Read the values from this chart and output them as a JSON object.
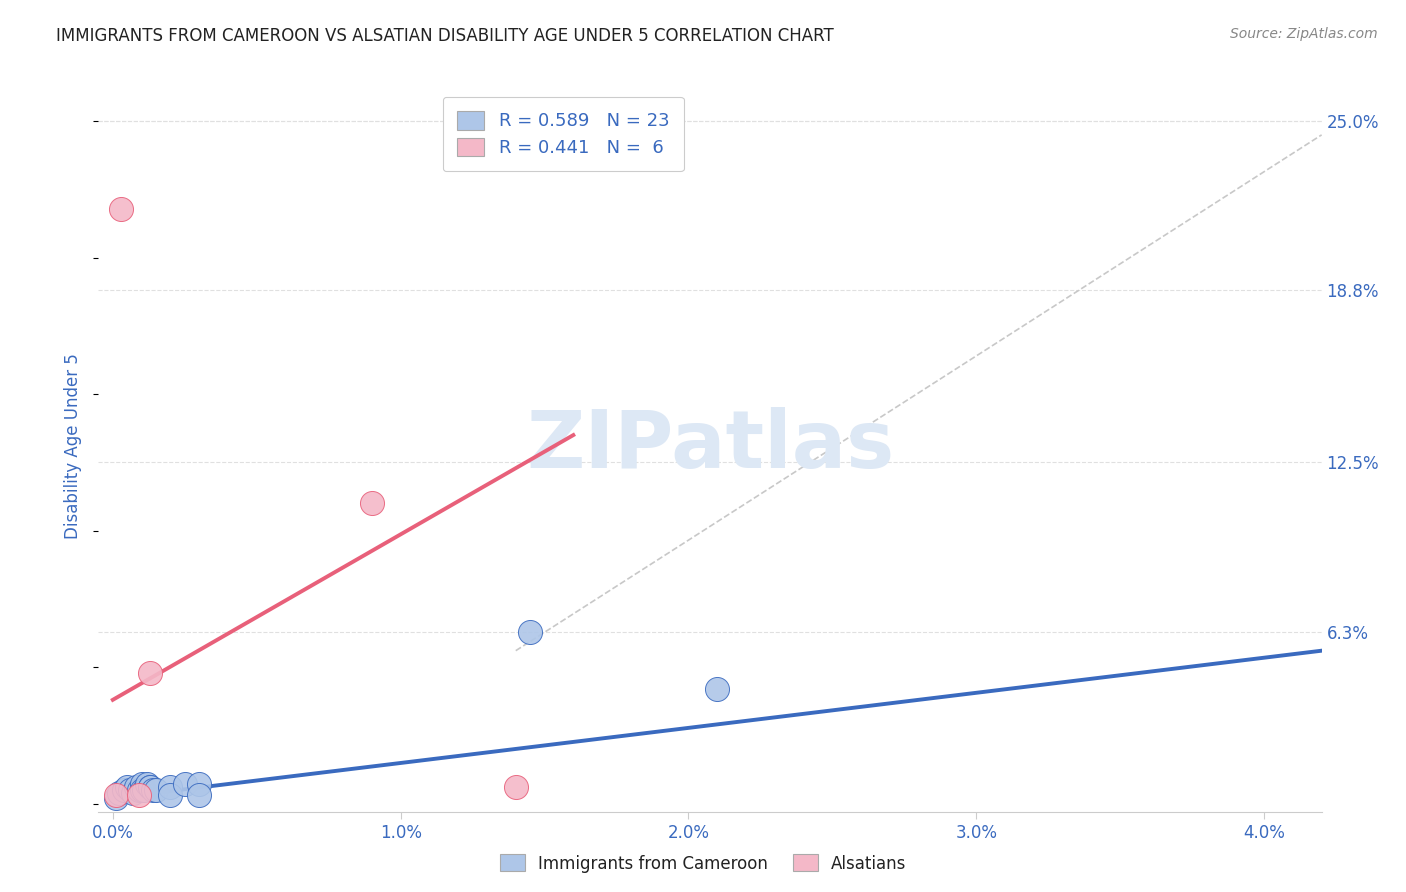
{
  "title": "IMMIGRANTS FROM CAMEROON VS ALSATIAN DISABILITY AGE UNDER 5 CORRELATION CHART",
  "source": "Source: ZipAtlas.com",
  "xlabel_ticks": [
    "0.0%",
    "1.0%",
    "2.0%",
    "3.0%",
    "4.0%"
  ],
  "xlabel_tick_vals": [
    0.0,
    0.01,
    0.02,
    0.03,
    0.04
  ],
  "ylabel": "Disability Age Under 5",
  "ylabel_ticks": [
    "6.3%",
    "12.5%",
    "18.8%",
    "25.0%"
  ],
  "ylabel_tick_vals": [
    0.063,
    0.125,
    0.188,
    0.25
  ],
  "xlim": [
    -0.0005,
    0.042
  ],
  "ylim": [
    -0.003,
    0.265
  ],
  "background_color": "#ffffff",
  "watermark": "ZIPatlas",
  "blue_scatter_x": [
    0.0001,
    0.0002,
    0.0004,
    0.0005,
    0.0006,
    0.0007,
    0.0008,
    0.0009,
    0.001,
    0.001,
    0.0011,
    0.0012,
    0.0013,
    0.0013,
    0.0014,
    0.0015,
    0.002,
    0.002,
    0.0025,
    0.003,
    0.003,
    0.0145,
    0.021
  ],
  "blue_scatter_y": [
    0.002,
    0.004,
    0.005,
    0.006,
    0.005,
    0.004,
    0.006,
    0.005,
    0.007,
    0.005,
    0.005,
    0.007,
    0.006,
    0.006,
    0.005,
    0.005,
    0.006,
    0.003,
    0.007,
    0.007,
    0.003,
    0.063,
    0.042
  ],
  "pink_scatter_x": [
    0.0001,
    0.0003,
    0.0009,
    0.0013,
    0.009,
    0.014
  ],
  "pink_scatter_y": [
    0.003,
    0.218,
    0.003,
    0.048,
    0.11,
    0.006
  ],
  "blue_line_x": [
    0.0,
    0.042
  ],
  "blue_line_y": [
    0.002,
    0.056
  ],
  "pink_line_x": [
    0.0,
    0.016
  ],
  "pink_line_y": [
    0.038,
    0.135
  ],
  "diag_line_x": [
    0.014,
    0.042
  ],
  "diag_line_y": [
    0.056,
    0.245
  ],
  "blue_color": "#aec6e8",
  "blue_line_color": "#3a6abf",
  "pink_color": "#f4b8c8",
  "pink_line_color": "#e8607a",
  "diag_color": "#c8c8c8",
  "title_color": "#222222",
  "axis_label_color": "#3a6abf",
  "tick_color": "#3a6abf",
  "grid_color": "#e0e0e0",
  "watermark_color": "#dde8f5"
}
